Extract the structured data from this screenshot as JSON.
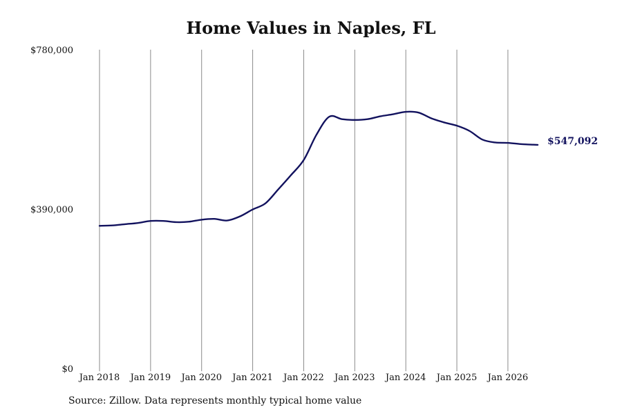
{
  "chart_data": {
    "type": "line",
    "title": "Home Values in Naples, FL",
    "xlabel": "",
    "ylabel": "",
    "ylim": [
      0,
      780000
    ],
    "xlim": [
      "2018-01",
      "2026-08"
    ],
    "grid": {
      "vertical": true,
      "horizontal": false
    },
    "legend": "none",
    "y_tick_labels": [
      {
        "value": 0,
        "label": "$0"
      },
      {
        "value": 390000,
        "label": "$390,000"
      },
      {
        "value": 780000,
        "label": "$780,000"
      }
    ],
    "x_tick_labels": [
      {
        "value": "2018-01",
        "label": "Jan 2018"
      },
      {
        "value": "2019-01",
        "label": "Jan 2019"
      },
      {
        "value": "2020-01",
        "label": "Jan 2020"
      },
      {
        "value": "2021-01",
        "label": "Jan 2021"
      },
      {
        "value": "2022-01",
        "label": "Jan 2022"
      },
      {
        "value": "2023-01",
        "label": "Jan 2023"
      },
      {
        "value": "2024-01",
        "label": "Jan 2024"
      },
      {
        "value": "2025-01",
        "label": "Jan 2025"
      },
      {
        "value": "2026-01",
        "label": "Jan 2026"
      }
    ],
    "series": [
      {
        "color": "#12125e",
        "end_label": "$547,092",
        "x": [
          "2018-01",
          "2018-04",
          "2018-07",
          "2018-10",
          "2019-01",
          "2019-04",
          "2019-07",
          "2019-10",
          "2020-01",
          "2020-04",
          "2020-07",
          "2020-10",
          "2021-01",
          "2021-04",
          "2021-07",
          "2021-10",
          "2022-01",
          "2022-04",
          "2022-07",
          "2022-10",
          "2023-01",
          "2023-04",
          "2023-07",
          "2023-10",
          "2024-01",
          "2024-04",
          "2024-07",
          "2024-10",
          "2025-01",
          "2025-04",
          "2025-07",
          "2025-10",
          "2026-01",
          "2026-04",
          "2026-07",
          "2026-08"
        ],
        "values": [
          349000,
          350000,
          353000,
          356000,
          361000,
          361000,
          358000,
          359000,
          364000,
          366000,
          362000,
          372000,
          389000,
          404000,
          438000,
          473000,
          510000,
          572000,
          616000,
          610000,
          608000,
          610000,
          617000,
          622000,
          628000,
          626000,
          612000,
          602000,
          594000,
          581000,
          560000,
          553000,
          552000,
          549000,
          547500,
          547092
        ]
      }
    ]
  },
  "footer": {
    "source": "Source: Zillow. Data represents monthly typical home value"
  }
}
